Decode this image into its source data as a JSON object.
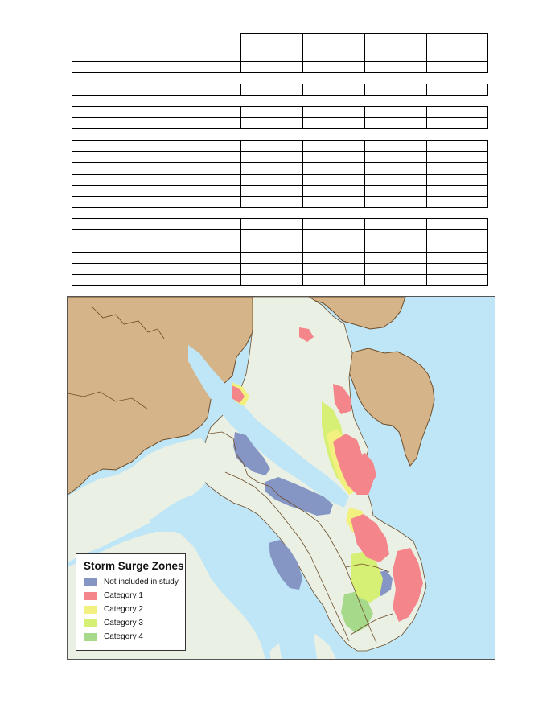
{
  "legend": {
    "title": "Storm Surge Zones",
    "items": [
      {
        "label": "Not included in study",
        "color": "#8596c4"
      },
      {
        "label": "Category 1",
        "color": "#f4868b"
      },
      {
        "label": "Category 2",
        "color": "#f2f07e"
      },
      {
        "label": "Category 3",
        "color": "#d5f074"
      },
      {
        "label": "Category 4",
        "color": "#a6d98a"
      }
    ]
  },
  "colors": {
    "water": "#bfe6f7",
    "land_outside": "#d4b488",
    "land_study": "#eaf0e4",
    "coast_outline": "#6e4d2a"
  },
  "table": {
    "header_columns": 4,
    "groups": [
      {
        "rows": 1
      },
      {
        "rows": 1
      },
      {
        "rows": 2
      },
      {
        "rows": 6
      },
      {
        "rows": 6
      }
    ]
  }
}
